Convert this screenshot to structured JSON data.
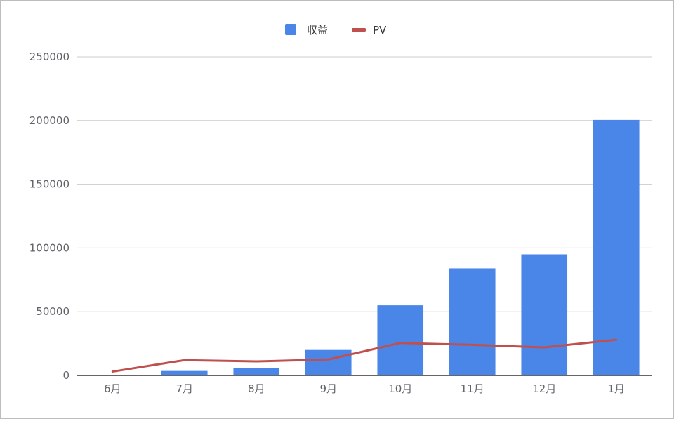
{
  "colors": {
    "bar": "#4a86e8",
    "line": "#c0504d",
    "grid": "#cccccc",
    "axis": "#333333",
    "text": "#5f6368"
  },
  "chart_data": {
    "type": "bar",
    "title": "",
    "xlabel": "",
    "ylabel": "",
    "categories": [
      "6月",
      "7月",
      "8月",
      "9月",
      "10月",
      "11月",
      "12月",
      "1月"
    ],
    "ylim": [
      0,
      250000
    ],
    "yticks": [
      0,
      50000,
      100000,
      150000,
      200000,
      250000
    ],
    "ytick_labels": [
      "0",
      "50000",
      "100000",
      "150000",
      "200000",
      "250000"
    ],
    "grid": true,
    "legend_position": "top-center",
    "series": [
      {
        "name": "収益",
        "kind": "bar",
        "color": "#4a86e8",
        "values": [
          0,
          3500,
          6000,
          20000,
          55000,
          84000,
          95000,
          200500
        ]
      },
      {
        "name": "PV",
        "kind": "line",
        "color": "#c0504d",
        "values": [
          3000,
          12000,
          11000,
          12500,
          25500,
          24000,
          22000,
          28000
        ]
      }
    ]
  }
}
